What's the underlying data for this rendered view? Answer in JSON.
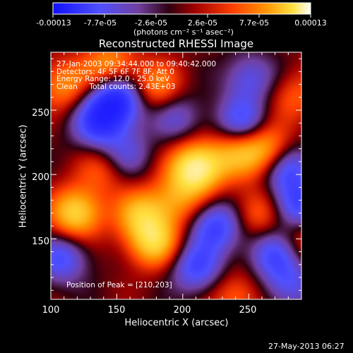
{
  "colorbar": {
    "tick_labels": [
      "-0.00013",
      "-7.7e-05",
      "-2.6e-05",
      "2.6e-05",
      "7.7e-05",
      "0.00013"
    ],
    "unit_label": "(photons cm⁻² s⁻¹ asec⁻²)"
  },
  "chart_data": {
    "type": "heatmap",
    "title": "Reconstructed RHESSI Image",
    "xlabel": "Heliocentric X (arcsec)",
    "ylabel": "Heliocentric Y (arcsec)",
    "xlim": [
      100,
      290
    ],
    "ylim": [
      103,
      295
    ],
    "xticks": [
      100,
      150,
      200,
      250
    ],
    "yticks": [
      150,
      200,
      250
    ],
    "colormap": [
      "#1010ff",
      "#5050ff",
      "#7040a0",
      "#300010",
      "#a00000",
      "#ff4000",
      "#ff9000",
      "#ffe040",
      "#ffffff"
    ],
    "color_range": [
      -0.00013,
      0.00013
    ],
    "peak_position": [
      210,
      203
    ],
    "sources": [
      {
        "x": 210,
        "y": 205,
        "amp": 1.0
      },
      {
        "x": 119,
        "y": 170,
        "amp": 0.75
      },
      {
        "x": 178,
        "y": 148,
        "amp": 0.7
      },
      {
        "x": 168,
        "y": 170,
        "amp": 0.55
      },
      {
        "x": 263,
        "y": 220,
        "amp": 0.6
      },
      {
        "x": 240,
        "y": 217,
        "amp": 0.5
      },
      {
        "x": 110,
        "y": 270,
        "amp": 0.45
      },
      {
        "x": 180,
        "y": 268,
        "amp": 0.45
      },
      {
        "x": 258,
        "y": 170,
        "amp": 0.4
      },
      {
        "x": 195,
        "y": 180,
        "amp": 0.4
      },
      {
        "x": 140,
        "y": 205,
        "amp": 0.35
      },
      {
        "x": 145,
        "y": 285,
        "amp": 0.5
      },
      {
        "x": 287,
        "y": 150,
        "amp": 0.35
      },
      {
        "x": 240,
        "y": 105,
        "amp": 0.35
      },
      {
        "x": 285,
        "y": 260,
        "amp": 0.3
      },
      {
        "x": 150,
        "y": 258,
        "amp": -0.85
      },
      {
        "x": 135,
        "y": 240,
        "amp": -0.6
      },
      {
        "x": 245,
        "y": 240,
        "amp": -0.55
      },
      {
        "x": 280,
        "y": 205,
        "amp": -0.55
      },
      {
        "x": 225,
        "y": 160,
        "amp": -0.6
      },
      {
        "x": 285,
        "y": 175,
        "amp": -0.6
      },
      {
        "x": 210,
        "y": 128,
        "amp": -0.55
      },
      {
        "x": 270,
        "y": 140,
        "amp": -0.55
      },
      {
        "x": 108,
        "y": 135,
        "amp": -0.5
      },
      {
        "x": 155,
        "y": 215,
        "amp": -0.4
      },
      {
        "x": 195,
        "y": 245,
        "amp": -0.35
      },
      {
        "x": 250,
        "y": 275,
        "amp": -0.4
      },
      {
        "x": 280,
        "y": 115,
        "amp": -0.4
      }
    ]
  },
  "overlay": {
    "line1": "27-Jan-2003 09:34:44.000 to 09:40:42.000",
    "line2": "Detectors: 4F 5F 6F 7F 8F, Att 0",
    "line3": "Energy Range: 12.0 - 25.0 keV",
    "line4": "Clean     Total counts: 2.43E+03",
    "peak_label": "Position of Peak = [210,203]"
  },
  "footer": {
    "timestamp": "27-May-2013 06:27"
  }
}
